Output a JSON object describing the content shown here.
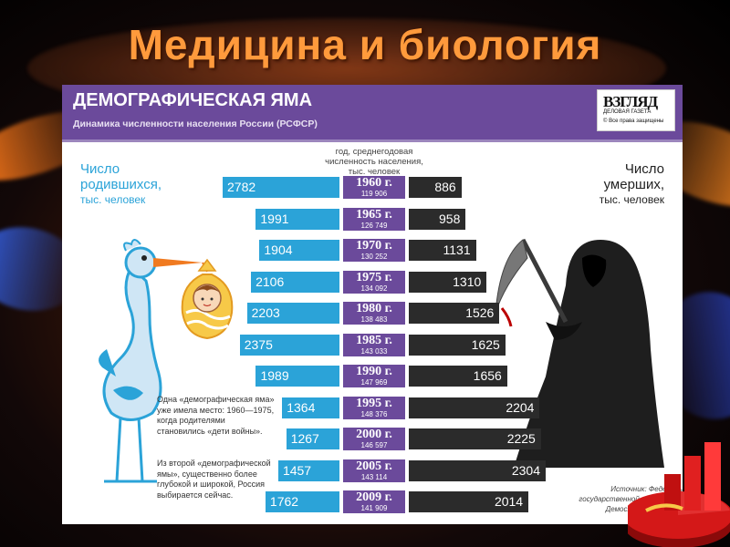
{
  "slide_title": "Медицина и биология",
  "header": {
    "title": "ДЕМОГРАФИЧЕСКАЯ ЯМА",
    "subtitle": "Динамика численности населения России (РСФСР)"
  },
  "logo": {
    "name": "ВЗГЛЯД",
    "tagline": "ДЕЛОВАЯ ГАЗЕТА",
    "rights": "© Все права защищены"
  },
  "column_header": {
    "line1": "год, среднегодовая",
    "line2": "численность населения,",
    "line3": "тыс. человек"
  },
  "births_label": {
    "line1": "Число",
    "line2": "родившихся,",
    "line3": "тыс. человек"
  },
  "deaths_label": {
    "line1": "Число",
    "line2": "умерших,",
    "line3": "тыс. человек"
  },
  "notes": {
    "note1": "Одна «демографическая яма» уже имела место: 1960—1975, когда родителями становились «дети войны».",
    "note2": "Из второй «демографической ямы», существенно более глубокой и широкой, Россия выбирается сейчас."
  },
  "source": {
    "line1": "Источник: Федераль",
    "line2": "государственной статистик",
    "line3": "Демоскоп Weekly www"
  },
  "colors": {
    "births_bar": "#2ba3d8",
    "deaths_bar": "#2b2b2b",
    "year_box": "#6b4a9b",
    "header": "#6b4a9b",
    "title": "#ff9a3c"
  },
  "chart_data": {
    "type": "bar",
    "title": "ДЕМОГРАФИЧЕСКАЯ ЯМА",
    "subtitle": "Динамика численности населения России (РСФСР)",
    "categories": [
      "1960 г.",
      "1965 г.",
      "1970 г.",
      "1975 г.",
      "1980 г.",
      "1985 г.",
      "1990 г.",
      "1995 г.",
      "2000 г.",
      "2005 г.",
      "2009 г."
    ],
    "population": [
      "119 906",
      "126 749",
      "130 252",
      "134 092",
      "138 483",
      "143 033",
      "147 969",
      "148 376",
      "146 597",
      "143 114",
      "141 909"
    ],
    "series": [
      {
        "name": "Число родившихся, тыс. человек",
        "values": [
          2782,
          1991,
          1904,
          2106,
          2203,
          2375,
          1989,
          1364,
          1267,
          1457,
          1762
        ]
      },
      {
        "name": "Число умерших, тыс. человек",
        "values": [
          886,
          958,
          1131,
          1310,
          1526,
          1625,
          1656,
          2204,
          2225,
          2304,
          2014
        ]
      }
    ],
    "ylim": [
      0,
      2800
    ]
  }
}
